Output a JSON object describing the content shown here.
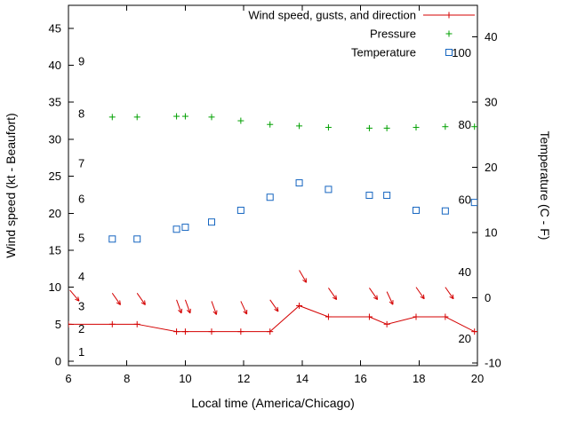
{
  "chart_data": {
    "type": "line",
    "title": "",
    "xlabel": "Local time (America/Chicago)",
    "ylabel_left": "Wind speed (kt - Beaufort)",
    "ylabel_right": "Temperature (C - F)",
    "grid": false,
    "legend_position": "top-right-inside",
    "x_axis": {
      "min": 6,
      "max": 20,
      "ticks": [
        6,
        8,
        10,
        12,
        14,
        16,
        18,
        20
      ]
    },
    "y_left": {
      "min": -0.6,
      "max": 48.1,
      "ticks": [
        0,
        5,
        10,
        15,
        20,
        25,
        30,
        35,
        40,
        45
      ]
    },
    "y_right": {
      "min": -10.4,
      "max": 44.8,
      "ticks": [
        -10,
        0,
        10,
        20,
        30,
        40
      ]
    },
    "beaufort_labels": [
      {
        "label": "1",
        "at": 1.2
      },
      {
        "label": "2",
        "at": 4.3
      },
      {
        "label": "3",
        "at": 7.4
      },
      {
        "label": "4",
        "at": 11.4
      },
      {
        "label": "5",
        "at": 16.6
      },
      {
        "label": "6",
        "at": 21.9
      },
      {
        "label": "7",
        "at": 26.7
      },
      {
        "label": "8",
        "at": 33.4
      },
      {
        "label": "9",
        "at": 40.5
      }
    ],
    "right_inner_labels": [
      {
        "label": "20",
        "at": 3.0
      },
      {
        "label": "40",
        "at": 12.0
      },
      {
        "label": "60",
        "at": 21.8
      },
      {
        "label": "80",
        "at": 31.9
      },
      {
        "label": "100",
        "at": 41.6
      }
    ],
    "legend": [
      {
        "label": "Wind speed, gusts, and direction",
        "color": "#d40000",
        "style": "line+plus"
      },
      {
        "label": "Pressure",
        "color": "#00a000",
        "style": "plus"
      },
      {
        "label": "Temperature",
        "color": "#1565c0",
        "style": "square"
      }
    ],
    "point_format": "[time_hours, value]",
    "arrow_format": "[time_hours, gust_kt, screen_angle_deg_clockwise_from_east]",
    "series": [
      {
        "name": "Wind speed",
        "style": "line+plus",
        "color": "#d40000",
        "axis": "left",
        "points": [
          [
            6.0,
            5
          ],
          [
            7.5,
            5
          ],
          [
            8.35,
            5
          ],
          [
            9.7,
            4
          ],
          [
            10.0,
            4
          ],
          [
            10.9,
            4
          ],
          [
            11.9,
            4
          ],
          [
            12.9,
            4
          ],
          [
            13.9,
            7.5
          ],
          [
            14.9,
            6
          ],
          [
            16.3,
            6
          ],
          [
            16.9,
            5
          ],
          [
            17.9,
            6
          ],
          [
            18.9,
            6
          ],
          [
            19.9,
            4
          ]
        ],
        "extend_to": [
          20.1,
          4
        ]
      },
      {
        "name": "Gusts and direction",
        "style": "arrows",
        "color": "#d40000",
        "axis": "left",
        "arrows": [
          [
            6.05,
            9.6,
            50
          ],
          [
            7.5,
            9.2,
            55
          ],
          [
            8.35,
            9.2,
            55
          ],
          [
            9.7,
            8.3,
            70
          ],
          [
            10.0,
            8.3,
            70
          ],
          [
            10.9,
            8.1,
            70
          ],
          [
            11.9,
            8.1,
            65
          ],
          [
            12.9,
            8.3,
            55
          ],
          [
            13.9,
            12.3,
            60
          ],
          [
            14.9,
            9.9,
            55
          ],
          [
            16.3,
            9.9,
            55
          ],
          [
            16.9,
            9.4,
            65
          ],
          [
            17.9,
            10.0,
            55
          ],
          [
            18.9,
            10.0,
            55
          ]
        ]
      },
      {
        "name": "Pressure",
        "style": "plus",
        "color": "#00a000",
        "axis": "left",
        "points": [
          [
            7.5,
            33.0
          ],
          [
            8.35,
            33.0
          ],
          [
            9.7,
            33.1
          ],
          [
            10.0,
            33.1
          ],
          [
            10.9,
            33.0
          ],
          [
            11.9,
            32.5
          ],
          [
            12.9,
            32.0
          ],
          [
            13.9,
            31.8
          ],
          [
            14.9,
            31.6
          ],
          [
            16.3,
            31.5
          ],
          [
            16.9,
            31.5
          ],
          [
            17.9,
            31.6
          ],
          [
            18.9,
            31.7
          ],
          [
            19.9,
            31.7
          ]
        ]
      },
      {
        "name": "Temperature",
        "style": "square",
        "color": "#1565c0",
        "axis": "right",
        "points": [
          [
            7.5,
            9.0
          ],
          [
            8.35,
            9.0
          ],
          [
            9.7,
            10.5
          ],
          [
            10.0,
            10.8
          ],
          [
            10.9,
            11.6
          ],
          [
            11.9,
            13.4
          ],
          [
            12.9,
            15.4
          ],
          [
            13.9,
            17.6
          ],
          [
            14.9,
            16.6
          ],
          [
            16.3,
            15.7
          ],
          [
            16.9,
            15.7
          ],
          [
            17.9,
            13.4
          ],
          [
            18.9,
            13.3
          ],
          [
            19.9,
            14.6
          ]
        ]
      }
    ]
  }
}
